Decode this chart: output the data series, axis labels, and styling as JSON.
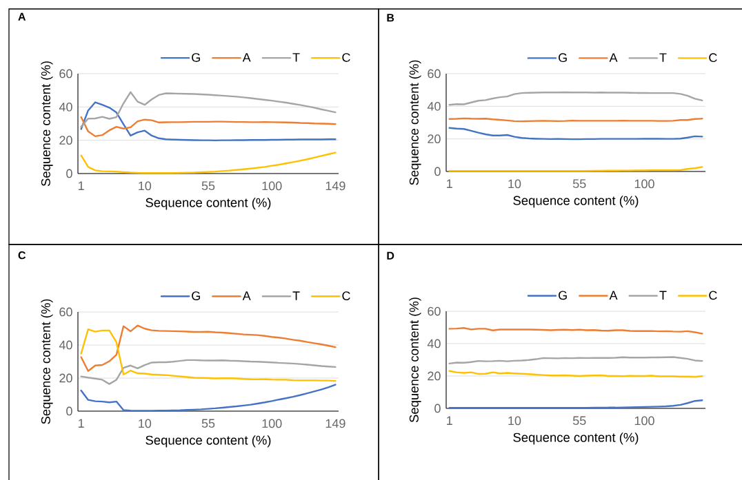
{
  "chart_data": [
    {
      "type": "line",
      "title": "A",
      "xlabel": "Sequence content (%)",
      "ylabel": "Sequence content (%)",
      "categories": [
        "1",
        null,
        null,
        null,
        null,
        null,
        null,
        null,
        null,
        "10",
        null,
        null,
        null,
        null,
        null,
        null,
        null,
        null,
        "55",
        null,
        null,
        null,
        null,
        null,
        null,
        null,
        null,
        "100",
        null,
        null,
        null,
        null,
        null,
        null,
        null,
        null,
        "149"
      ],
      "ylim": [
        0,
        60
      ],
      "yticks": [
        0,
        20,
        40,
        60
      ],
      "grid": "y",
      "legend": "top right",
      "series": [
        {
          "name": "G",
          "color": "#4472c4",
          "values": [
            26.7,
            37.9,
            42.8,
            41.3,
            39.6,
            36.7,
            29.6,
            22.8,
            24.8,
            25.8,
            22.8,
            21.2,
            20.6,
            20.4,
            20.3,
            20.2,
            20.1,
            20.0,
            20.0,
            19.9,
            20.0,
            20.0,
            20.1,
            20.1,
            20.2,
            20.2,
            20.2,
            20.3,
            20.3,
            20.4,
            20.4,
            20.5,
            20.5,
            20.5,
            20.5,
            20.6,
            20.6
          ]
        },
        {
          "name": "A",
          "color": "#ed7d31",
          "values": [
            33.9,
            25.3,
            22.4,
            23.1,
            26.0,
            28.1,
            27.0,
            27.8,
            31.4,
            32.4,
            32.0,
            30.7,
            30.8,
            30.9,
            30.9,
            31.0,
            31.1,
            31.1,
            31.1,
            31.2,
            31.2,
            31.1,
            31.0,
            31.0,
            30.9,
            30.9,
            31.0,
            30.9,
            30.8,
            30.7,
            30.6,
            30.4,
            30.3,
            30.1,
            30.0,
            29.9,
            29.7
          ]
        },
        {
          "name": "T",
          "color": "#a5a5a5",
          "values": [
            28.1,
            33.0,
            33.1,
            34.1,
            32.9,
            33.9,
            42.2,
            48.9,
            43.2,
            41.3,
            44.6,
            47.2,
            48.2,
            48.1,
            48.0,
            47.9,
            47.8,
            47.6,
            47.4,
            47.1,
            46.8,
            46.5,
            46.2,
            45.8,
            45.3,
            44.8,
            44.3,
            43.8,
            43.2,
            42.6,
            41.9,
            41.2,
            40.4,
            39.6,
            38.6,
            37.7,
            36.8
          ]
        },
        {
          "name": "C",
          "color": "#ffc000",
          "values": [
            10.9,
            4.0,
            1.9,
            1.4,
            1.3,
            1.2,
            0.9,
            0.6,
            0.4,
            0.3,
            0.3,
            0.3,
            0.3,
            0.3,
            0.4,
            0.5,
            0.6,
            0.8,
            1.0,
            1.2,
            1.5,
            1.8,
            2.2,
            2.6,
            3.0,
            3.5,
            4.0,
            4.7,
            5.3,
            6.1,
            6.9,
            7.7,
            8.6,
            9.6,
            10.6,
            11.6,
            12.6
          ]
        }
      ]
    },
    {
      "type": "line",
      "title": "B",
      "xlabel": "Sequence content (%)",
      "ylabel": "Sequence content (%)",
      "categories": [
        "1",
        null,
        null,
        null,
        null,
        null,
        null,
        null,
        null,
        "10",
        null,
        null,
        null,
        null,
        null,
        null,
        null,
        null,
        "55",
        null,
        null,
        null,
        null,
        null,
        null,
        null,
        null,
        "100",
        null,
        null,
        null,
        null,
        null,
        null,
        null,
        null
      ],
      "ylim": [
        0,
        60
      ],
      "yticks": [
        0,
        20,
        40,
        60
      ],
      "grid": "y",
      "legend": "top right",
      "series": [
        {
          "name": "G",
          "color": "#4472c4",
          "values": [
            26.7,
            26.3,
            26.1,
            25.0,
            23.8,
            22.8,
            22.1,
            22.1,
            22.4,
            21.3,
            20.6,
            20.3,
            20.1,
            20.0,
            19.9,
            20.0,
            19.9,
            19.8,
            19.8,
            19.9,
            19.9,
            20.0,
            20.0,
            20.0,
            20.0,
            20.0,
            20.0,
            20.1,
            20.1,
            20.1,
            20.0,
            20.0,
            20.2,
            20.8,
            21.6,
            21.4
          ]
        },
        {
          "name": "A",
          "color": "#ed7d31",
          "values": [
            32.2,
            32.3,
            32.6,
            32.4,
            32.3,
            32.4,
            32.0,
            31.7,
            31.3,
            30.9,
            30.8,
            30.9,
            31.0,
            31.1,
            31.0,
            30.9,
            31.0,
            31.2,
            31.1,
            31.1,
            31.1,
            31.1,
            31.1,
            31.1,
            31.2,
            31.1,
            31.1,
            31.1,
            31.1,
            31.0,
            31.0,
            31.1,
            31.6,
            31.6,
            32.2,
            32.4
          ]
        },
        {
          "name": "T",
          "color": "#a5a5a5",
          "values": [
            40.9,
            41.3,
            41.2,
            42.3,
            43.4,
            43.8,
            44.8,
            45.6,
            46.0,
            47.5,
            48.1,
            48.3,
            48.4,
            48.5,
            48.5,
            48.5,
            48.6,
            48.5,
            48.5,
            48.5,
            48.4,
            48.5,
            48.4,
            48.4,
            48.4,
            48.3,
            48.2,
            48.2,
            48.1,
            48.1,
            48.1,
            48.1,
            47.6,
            46.4,
            44.6,
            43.6
          ]
        },
        {
          "name": "C",
          "color": "#ffc000",
          "values": [
            0.3,
            0.3,
            0.3,
            0.3,
            0.3,
            0.3,
            0.3,
            0.3,
            0.3,
            0.3,
            0.3,
            0.3,
            0.3,
            0.3,
            0.3,
            0.3,
            0.3,
            0.3,
            0.3,
            0.3,
            0.4,
            0.4,
            0.5,
            0.5,
            0.6,
            0.6,
            0.7,
            0.7,
            0.8,
            0.8,
            0.8,
            0.8,
            0.9,
            1.6,
            2.0,
            2.8
          ]
        }
      ]
    },
    {
      "type": "line",
      "title": "C",
      "xlabel": "Sequence content (%)",
      "ylabel": "Sequence content (%)",
      "categories": [
        "1",
        null,
        null,
        null,
        null,
        null,
        null,
        null,
        null,
        "10",
        null,
        null,
        null,
        null,
        null,
        null,
        null,
        null,
        "55",
        null,
        null,
        null,
        null,
        null,
        null,
        null,
        null,
        "100",
        null,
        null,
        null,
        null,
        null,
        null,
        null,
        null,
        "149"
      ],
      "ylim": [
        0,
        60
      ],
      "yticks": [
        0,
        20,
        40,
        60
      ],
      "grid": "y",
      "legend": "top right",
      "series": [
        {
          "name": "G",
          "color": "#4472c4",
          "values": [
            12.5,
            6.8,
            6.0,
            5.8,
            5.3,
            5.8,
            0.6,
            0.3,
            0.2,
            0.2,
            0.2,
            0.3,
            0.3,
            0.4,
            0.5,
            0.7,
            0.9,
            1.1,
            1.4,
            1.7,
            2.1,
            2.5,
            2.9,
            3.4,
            3.9,
            4.6,
            5.3,
            6.1,
            7.0,
            7.8,
            8.7,
            9.7,
            10.8,
            11.9,
            13.1,
            14.4,
            16.0
          ]
        },
        {
          "name": "A",
          "color": "#ed7d31",
          "values": [
            32.7,
            24.3,
            27.6,
            27.9,
            30.2,
            34.1,
            51.4,
            48.3,
            51.8,
            49.9,
            48.9,
            48.6,
            48.5,
            48.4,
            48.3,
            48.1,
            47.9,
            47.9,
            48.0,
            47.7,
            47.5,
            47.2,
            46.8,
            46.4,
            46.2,
            46.0,
            45.5,
            44.9,
            44.5,
            43.9,
            43.2,
            42.6,
            41.8,
            41.1,
            40.4,
            39.6,
            38.7
          ]
        },
        {
          "name": "T",
          "color": "#a5a5a5",
          "values": [
            21.0,
            20.3,
            19.7,
            19.0,
            16.4,
            19.0,
            26.2,
            27.6,
            25.9,
            27.9,
            29.4,
            29.6,
            29.6,
            29.9,
            30.4,
            30.9,
            30.9,
            30.7,
            30.6,
            30.6,
            30.7,
            30.5,
            30.4,
            30.2,
            30.0,
            29.9,
            29.7,
            29.5,
            29.2,
            29.0,
            28.8,
            28.5,
            28.1,
            27.7,
            27.3,
            27.0,
            26.7
          ]
        },
        {
          "name": "C",
          "color": "#ffc000",
          "values": [
            34.8,
            49.5,
            48.1,
            48.8,
            48.8,
            41.7,
            22.2,
            24.5,
            22.9,
            22.7,
            22.2,
            22.0,
            21.8,
            21.4,
            21.0,
            20.6,
            20.2,
            20.1,
            20.0,
            19.8,
            19.9,
            19.9,
            19.8,
            19.5,
            19.3,
            19.2,
            19.3,
            19.1,
            19.0,
            19.0,
            18.7,
            18.6,
            18.6,
            18.6,
            18.5,
            18.5,
            18.3
          ]
        }
      ]
    },
    {
      "type": "line",
      "title": "D",
      "xlabel": "Sequence content (%)",
      "ylabel": "Sequence content (%)",
      "categories": [
        "1",
        null,
        null,
        null,
        null,
        null,
        null,
        null,
        null,
        "10",
        null,
        null,
        null,
        null,
        null,
        null,
        null,
        null,
        "55",
        null,
        null,
        null,
        null,
        null,
        null,
        null,
        null,
        "100",
        null,
        null,
        null,
        null,
        null,
        null,
        null,
        null
      ],
      "ylim": [
        0,
        60
      ],
      "yticks": [
        0,
        20,
        40,
        60
      ],
      "grid": "y",
      "legend": "top right",
      "series": [
        {
          "name": "G",
          "color": "#4472c4",
          "values": [
            0.3,
            0.3,
            0.3,
            0.3,
            0.3,
            0.3,
            0.3,
            0.3,
            0.3,
            0.3,
            0.3,
            0.3,
            0.3,
            0.3,
            0.3,
            0.3,
            0.3,
            0.3,
            0.3,
            0.3,
            0.4,
            0.4,
            0.5,
            0.5,
            0.6,
            0.7,
            0.8,
            0.9,
            1.0,
            1.1,
            1.3,
            1.6,
            2.2,
            3.3,
            4.6,
            5.0
          ]
        },
        {
          "name": "A",
          "color": "#ed7d31",
          "values": [
            49.2,
            49.3,
            49.7,
            48.8,
            49.2,
            49.2,
            48.2,
            48.7,
            48.7,
            48.7,
            48.7,
            48.7,
            48.6,
            48.5,
            48.3,
            48.5,
            48.6,
            48.4,
            48.6,
            48.3,
            48.4,
            48.1,
            48.0,
            48.3,
            48.3,
            47.9,
            47.8,
            47.8,
            47.8,
            47.6,
            47.7,
            47.5,
            47.4,
            47.7,
            47.0,
            46.2
          ]
        },
        {
          "name": "T",
          "color": "#a5a5a5",
          "values": [
            27.7,
            28.3,
            28.2,
            28.6,
            29.3,
            29.1,
            29.2,
            29.4,
            29.1,
            29.4,
            29.6,
            29.9,
            30.4,
            31.1,
            31.0,
            30.9,
            31.1,
            31.0,
            31.2,
            31.1,
            31.2,
            31.2,
            31.2,
            31.3,
            31.6,
            31.4,
            31.4,
            31.4,
            31.5,
            31.5,
            31.6,
            31.7,
            31.2,
            30.6,
            29.6,
            29.3
          ]
        },
        {
          "name": "C",
          "color": "#ffc000",
          "values": [
            23.1,
            22.3,
            21.9,
            22.3,
            21.3,
            21.4,
            22.3,
            21.6,
            21.9,
            21.6,
            21.4,
            21.2,
            20.9,
            20.6,
            20.3,
            20.3,
            20.4,
            20.2,
            20.0,
            20.2,
            20.3,
            20.4,
            20.0,
            20.0,
            19.9,
            20.1,
            20.0,
            20.0,
            20.2,
            19.8,
            19.8,
            19.8,
            19.6,
            19.6,
            19.4,
            19.9
          ]
        }
      ]
    }
  ]
}
